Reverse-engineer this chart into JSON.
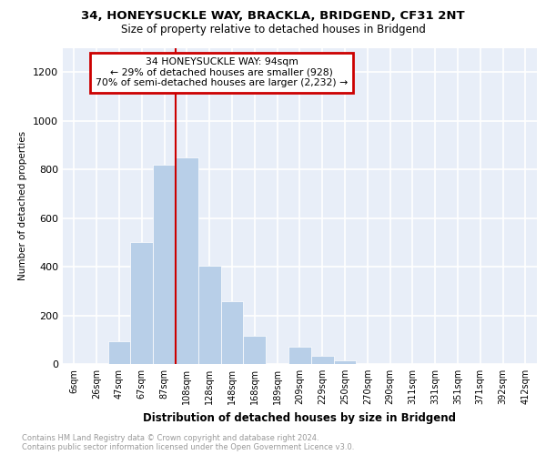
{
  "title_line1": "34, HONEYSUCKLE WAY, BRACKLA, BRIDGEND, CF31 2NT",
  "title_line2": "Size of property relative to detached houses in Bridgend",
  "xlabel": "Distribution of detached houses by size in Bridgend",
  "ylabel": "Number of detached properties",
  "bar_labels": [
    "6sqm",
    "26sqm",
    "47sqm",
    "67sqm",
    "87sqm",
    "108sqm",
    "128sqm",
    "148sqm",
    "168sqm",
    "189sqm",
    "209sqm",
    "229sqm",
    "250sqm",
    "270sqm",
    "290sqm",
    "311sqm",
    "331sqm",
    "351sqm",
    "371sqm",
    "392sqm",
    "412sqm"
  ],
  "bar_values": [
    0,
    0,
    95,
    500,
    820,
    850,
    405,
    260,
    115,
    0,
    70,
    35,
    15,
    0,
    0,
    0,
    0,
    0,
    0,
    0,
    0
  ],
  "bar_color": "#b8cfe8",
  "vline_color": "#cc0000",
  "vline_x": 4.5,
  "annotation_line1": "34 HONEYSUCKLE WAY: 94sqm",
  "annotation_line2": "← 29% of detached houses are smaller (928)",
  "annotation_line3": "70% of semi-detached houses are larger (2,232) →",
  "annotation_box_edge_color": "#cc0000",
  "ylim_max": 1300,
  "yticks": [
    0,
    200,
    400,
    600,
    800,
    1000,
    1200
  ],
  "background_color": "#e8eef8",
  "grid_color": "#ffffff",
  "footnote_line1": "Contains HM Land Registry data © Crown copyright and database right 2024.",
  "footnote_line2": "Contains public sector information licensed under the Open Government Licence v3.0."
}
